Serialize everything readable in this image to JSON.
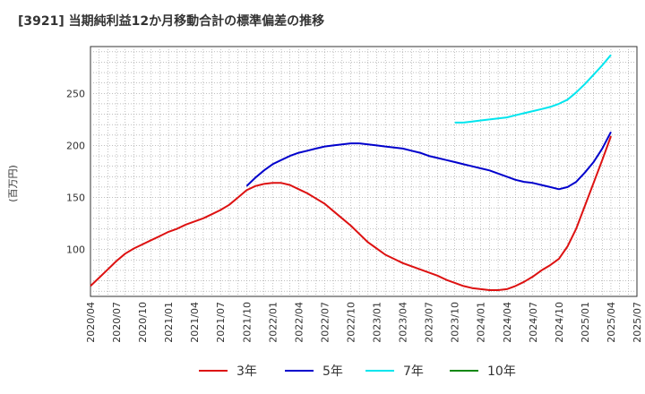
{
  "chart_data": {
    "type": "line",
    "title": "[3921]  当期純利益12か月移動合計の標準偏差の推移",
    "ylabel": "(百万円)",
    "xlabel": "",
    "ylim": [
      55,
      295
    ],
    "yticks": [
      100,
      150,
      200,
      250
    ],
    "ytick_labels": [
      "100",
      "150",
      "200",
      "250"
    ],
    "x_range": [
      "2020-04",
      "2025-07"
    ],
    "x_tick_labels": [
      "2020/04",
      "2020/07",
      "2020/10",
      "2021/01",
      "2021/04",
      "2021/07",
      "2021/10",
      "2022/01",
      "2022/04",
      "2022/07",
      "2022/10",
      "2023/01",
      "2023/04",
      "2023/07",
      "2023/10",
      "2024/01",
      "2024/04",
      "2024/07",
      "2024/10",
      "2025/01",
      "2025/04",
      "2025/07"
    ],
    "grid": true,
    "legend_position": "bottom",
    "colors": {
      "3年": "#dd1111",
      "5年": "#0000cc",
      "7年": "#00e5ee",
      "10年": "#118811"
    },
    "series": [
      {
        "name": "3年",
        "color": "#dd1111",
        "x": [
          "2020-04",
          "2020-05",
          "2020-06",
          "2020-07",
          "2020-08",
          "2020-09",
          "2020-10",
          "2020-11",
          "2020-12",
          "2021-01",
          "2021-02",
          "2021-03",
          "2021-04",
          "2021-05",
          "2021-06",
          "2021-07",
          "2021-08",
          "2021-09",
          "2021-10",
          "2021-11",
          "2021-12",
          "2022-01",
          "2022-02",
          "2022-03",
          "2022-04",
          "2022-05",
          "2022-06",
          "2022-07",
          "2022-08",
          "2022-09",
          "2022-10",
          "2022-11",
          "2022-12",
          "2023-01",
          "2023-02",
          "2023-03",
          "2023-04",
          "2023-05",
          "2023-06",
          "2023-07",
          "2023-08",
          "2023-09",
          "2023-10",
          "2023-11",
          "2023-12",
          "2024-01",
          "2024-02",
          "2024-03",
          "2024-04",
          "2024-05",
          "2024-06",
          "2024-07",
          "2024-08",
          "2024-09",
          "2024-10",
          "2024-11",
          "2024-12",
          "2025-01",
          "2025-02",
          "2025-03",
          "2025-04"
        ],
        "values": [
          65,
          73,
          81,
          89,
          96,
          101,
          105,
          109,
          113,
          117,
          120,
          124,
          127,
          130,
          134,
          138,
          143,
          150,
          157,
          161,
          163,
          164,
          164,
          162,
          158,
          154,
          149,
          144,
          137,
          130,
          123,
          115,
          107,
          101,
          95,
          91,
          87,
          84,
          81,
          78,
          75,
          71,
          68,
          65,
          63,
          62,
          61,
          61,
          62,
          65,
          69,
          74,
          80,
          85,
          91,
          103,
          120,
          142,
          164,
          186,
          209
        ]
      },
      {
        "name": "5年",
        "color": "#0000cc",
        "x": [
          "2021-10",
          "2021-11",
          "2021-12",
          "2022-01",
          "2022-02",
          "2022-03",
          "2022-04",
          "2022-05",
          "2022-06",
          "2022-07",
          "2022-08",
          "2022-09",
          "2022-10",
          "2022-11",
          "2022-12",
          "2023-01",
          "2023-02",
          "2023-03",
          "2023-04",
          "2023-05",
          "2023-06",
          "2023-07",
          "2023-08",
          "2023-09",
          "2023-10",
          "2023-11",
          "2023-12",
          "2024-01",
          "2024-02",
          "2024-03",
          "2024-04",
          "2024-05",
          "2024-06",
          "2024-07",
          "2024-08",
          "2024-09",
          "2024-10",
          "2024-11",
          "2024-12",
          "2025-01",
          "2025-02",
          "2025-03",
          "2025-04"
        ],
        "values": [
          161,
          169,
          176,
          182,
          186,
          190,
          193,
          195,
          197,
          199,
          200,
          201,
          202,
          202,
          201,
          200,
          199,
          198,
          197,
          195,
          193,
          190,
          188,
          186,
          184,
          182,
          180,
          178,
          176,
          173,
          170,
          167,
          165,
          164,
          162,
          160,
          158,
          160,
          165,
          174,
          184,
          197,
          213
        ]
      },
      {
        "name": "7年",
        "color": "#00e5ee",
        "x": [
          "2023-10",
          "2023-11",
          "2023-12",
          "2024-01",
          "2024-02",
          "2024-03",
          "2024-04",
          "2024-05",
          "2024-06",
          "2024-07",
          "2024-08",
          "2024-09",
          "2024-10",
          "2024-11",
          "2024-12",
          "2025-01",
          "2025-02",
          "2025-03",
          "2025-04"
        ],
        "values": [
          222,
          222,
          223,
          224,
          225,
          226,
          227,
          229,
          231,
          233,
          235,
          237,
          240,
          244,
          251,
          259,
          268,
          277,
          287
        ]
      },
      {
        "name": "10年",
        "color": "#118811",
        "x": [],
        "values": []
      }
    ]
  }
}
